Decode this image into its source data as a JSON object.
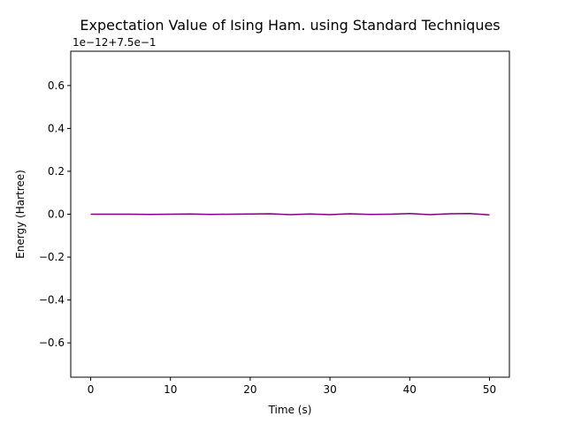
{
  "chart_data": {
    "type": "line",
    "title": "Expectation Value of Ising Ham. using Standard Techniques",
    "xlabel": "Time (s)",
    "ylabel": "Energy (Hartree)",
    "offset_text": "1e−12+7.5e−1",
    "xlim": [
      -2.5,
      52.5
    ],
    "ylim": [
      -0.76,
      0.76
    ],
    "xticks": [
      0,
      10,
      20,
      30,
      40,
      50
    ],
    "xtick_labels": [
      "0",
      "10",
      "20",
      "30",
      "40",
      "50"
    ],
    "yticks": [
      -0.6,
      -0.4,
      -0.2,
      0.0,
      0.2,
      0.4,
      0.6
    ],
    "ytick_labels": [
      "−0.6",
      "−0.4",
      "−0.2",
      "0.0",
      "0.2",
      "0.4",
      "0.6"
    ],
    "grid": false,
    "series": [
      {
        "color": "#800080",
        "x": [
          0,
          2.5,
          5,
          7.5,
          10,
          12.5,
          15,
          17.5,
          20,
          22.5,
          25,
          27.5,
          30,
          32.5,
          35,
          37.5,
          40,
          42.5,
          45,
          47.5,
          50
        ],
        "y": [
          0.0,
          0.0,
          0.0,
          -0.001,
          0.0,
          0.001,
          -0.001,
          0.0,
          0.001,
          0.002,
          -0.002,
          0.001,
          -0.002,
          0.002,
          -0.001,
          0.0,
          0.003,
          -0.002,
          0.002,
          0.003,
          -0.003
        ]
      }
    ]
  }
}
